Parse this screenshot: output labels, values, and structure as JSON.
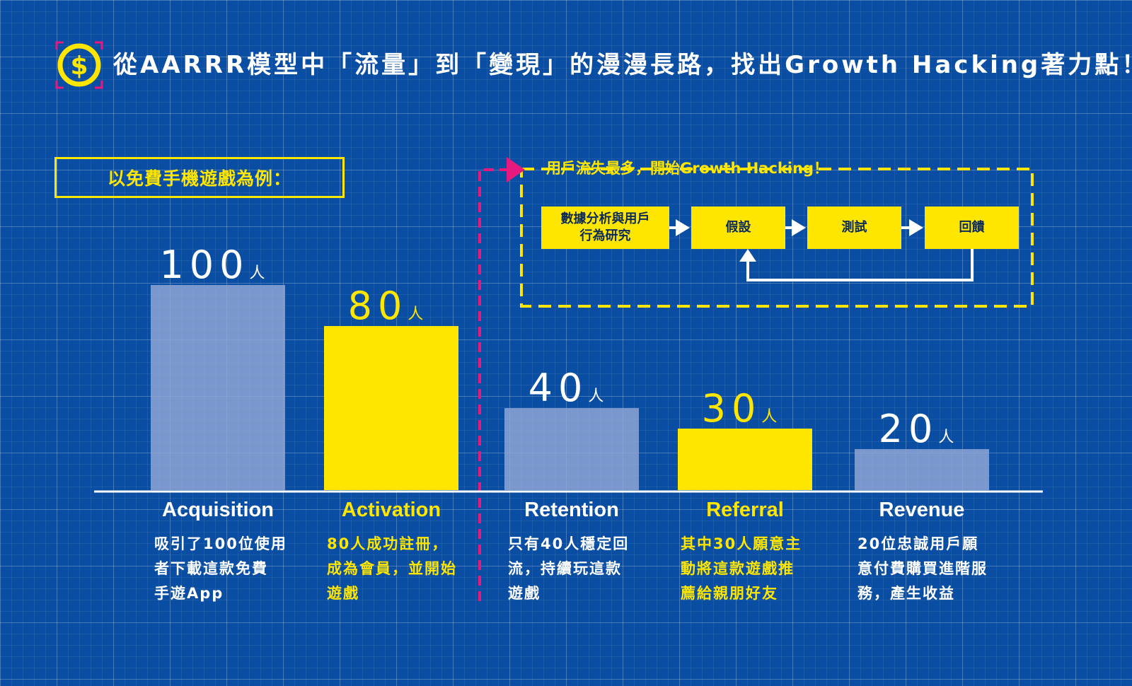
{
  "header": {
    "title": "從AARRR模型中「流量」到「變現」的漫漫長路，找出Growth Hacking著力點！",
    "logo_icon": "dollar-coin-icon"
  },
  "example_label": "以免費手機遊戲為例：",
  "growth_hacking": {
    "title": "用戶流失最多，開始Growth Hacking！",
    "steps": [
      "數據分析與用戶\n行為研究",
      "假設",
      "測試",
      "回饋"
    ]
  },
  "colors": {
    "background": "#0a4ea3",
    "yellow": "#ffe600",
    "pale_bar": "#8fa6d6",
    "magenta": "#e6197f"
  },
  "chart_data": {
    "type": "bar",
    "categories": [
      "Acquisition",
      "Activation",
      "Retention",
      "Referral",
      "Revenue"
    ],
    "values": [
      100,
      80,
      40,
      30,
      20
    ],
    "value_labels": [
      "100",
      "80",
      "40",
      "30",
      "20"
    ],
    "unit": "人",
    "highlight": [
      false,
      true,
      false,
      true,
      false
    ],
    "ylim": [
      0,
      100
    ],
    "descriptions": [
      [
        "吸引了100位使用",
        "者下載這款免費",
        "手遊App"
      ],
      [
        "80人成功註冊，",
        "成為會員，並開始",
        "遊戲"
      ],
      [
        "只有40人穩定回",
        "流，持續玩這款",
        "遊戲"
      ],
      [
        "其中30人願意主",
        "動將這款遊戲推",
        "薦給親朋好友"
      ],
      [
        "20位忠誠用戶願",
        "意付費購買進階服",
        "務，產生收益"
      ]
    ]
  }
}
